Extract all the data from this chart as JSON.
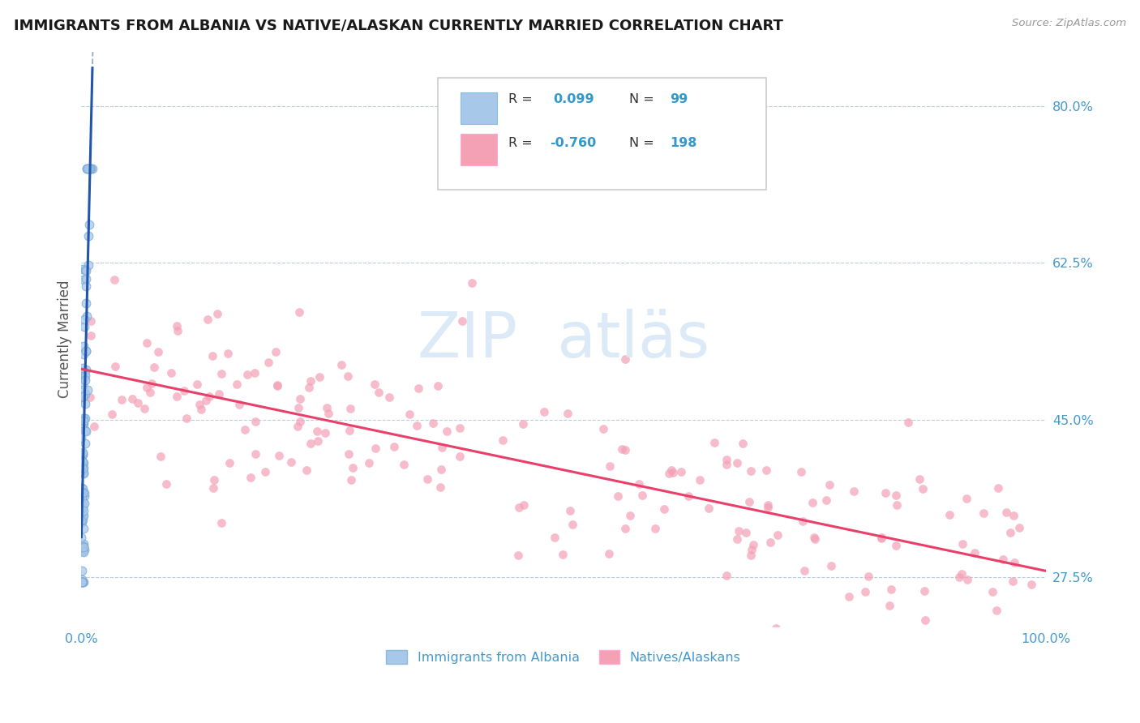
{
  "title": "IMMIGRANTS FROM ALBANIA VS NATIVE/ALASKAN CURRENTLY MARRIED CORRELATION CHART",
  "source_text": "Source: ZipAtlas.com",
  "ylabel": "Currently Married",
  "xlim": [
    0.0,
    1.0
  ],
  "ylim": [
    0.22,
    0.86
  ],
  "yticks": [
    0.275,
    0.45,
    0.625,
    0.8
  ],
  "ytick_labels": [
    "27.5%",
    "45.0%",
    "62.5%",
    "80.0%"
  ],
  "xtick_labels": [
    "0.0%",
    "100.0%"
  ],
  "color_blue": "#A8C8EA",
  "color_pink": "#F4A0B5",
  "trendline_blue": "#2255AA",
  "trendline_pink": "#E8406A",
  "trendline_gray": "#99AACC",
  "watermark_color": "#D8E8F5"
}
